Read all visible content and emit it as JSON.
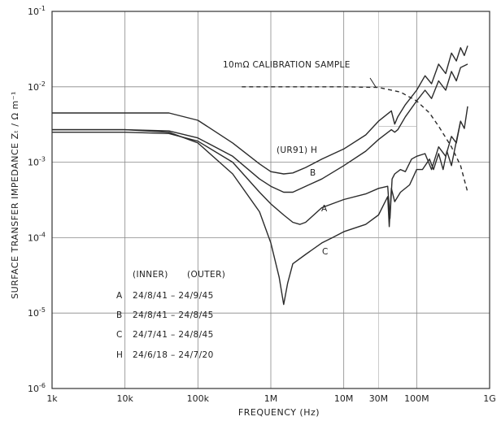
{
  "chart_data": {
    "type": "line",
    "xscale": "log",
    "yscale": "log",
    "xlim": [
      1000,
      1000000000
    ],
    "ylim": [
      1e-06,
      0.1
    ],
    "xlabel": "FREQUENCY (Hz)",
    "ylabel": "SURFACE TRANSFER IMPEDANCE Zₜ / Ω m⁻¹",
    "x_tick_labels": [
      "1k",
      "10k",
      "100k",
      "1M",
      "10M",
      "30M",
      "100M",
      "1G"
    ],
    "y_tick_labels": [
      {
        "base": "10",
        "exp": "-1"
      },
      {
        "base": "10",
        "exp": "-2"
      },
      {
        "base": "10",
        "exp": "-3"
      },
      {
        "base": "10",
        "exp": "-4"
      },
      {
        "base": "10",
        "exp": "-5"
      },
      {
        "base": "10",
        "exp": "-6"
      }
    ],
    "grid": true,
    "series": [
      {
        "name": "H",
        "points": [
          [
            1000,
            0.0045
          ],
          [
            10000,
            0.0045
          ],
          [
            40000,
            0.0045
          ],
          [
            100000,
            0.0036
          ],
          [
            300000,
            0.0018
          ],
          [
            700000,
            0.00095
          ],
          [
            1000000,
            0.00075
          ],
          [
            1500000,
            0.0007
          ],
          [
            2000000,
            0.00072
          ],
          [
            3000000,
            0.00085
          ],
          [
            5000000,
            0.0011
          ],
          [
            10000000,
            0.0015
          ],
          [
            20000000,
            0.0023
          ],
          [
            30000000,
            0.0035
          ],
          [
            45000000,
            0.0048
          ],
          [
            50000000,
            0.0032
          ],
          [
            55000000,
            0.004
          ],
          [
            70000000,
            0.0058
          ],
          [
            100000000,
            0.009
          ],
          [
            130000000,
            0.014
          ],
          [
            160000000,
            0.011
          ],
          [
            200000000,
            0.02
          ],
          [
            250000000,
            0.015
          ],
          [
            300000000,
            0.028
          ],
          [
            350000000,
            0.022
          ],
          [
            400000000,
            0.033
          ],
          [
            450000000,
            0.026
          ],
          [
            500000000,
            0.035
          ]
        ]
      },
      {
        "name": "B",
        "points": [
          [
            1000,
            0.0027
          ],
          [
            10000,
            0.0027
          ],
          [
            40000,
            0.0026
          ],
          [
            100000,
            0.0021
          ],
          [
            300000,
            0.0012
          ],
          [
            700000,
            0.0006
          ],
          [
            1000000,
            0.00048
          ],
          [
            1500000,
            0.0004
          ],
          [
            2000000,
            0.0004
          ],
          [
            3000000,
            0.00048
          ],
          [
            5000000,
            0.0006
          ],
          [
            10000000,
            0.0009
          ],
          [
            20000000,
            0.0014
          ],
          [
            30000000,
            0.002
          ],
          [
            45000000,
            0.0027
          ],
          [
            50000000,
            0.0025
          ],
          [
            55000000,
            0.0027
          ],
          [
            70000000,
            0.004
          ],
          [
            100000000,
            0.0065
          ],
          [
            130000000,
            0.009
          ],
          [
            160000000,
            0.007
          ],
          [
            200000000,
            0.012
          ],
          [
            250000000,
            0.009
          ],
          [
            300000000,
            0.016
          ],
          [
            350000000,
            0.012
          ],
          [
            400000000,
            0.018
          ],
          [
            500000000,
            0.02
          ]
        ]
      },
      {
        "name": "A",
        "points": [
          [
            1000,
            0.0025
          ],
          [
            10000,
            0.0025
          ],
          [
            40000,
            0.0024
          ],
          [
            100000,
            0.0019
          ],
          [
            300000,
            0.001
          ],
          [
            700000,
            0.0004
          ],
          [
            1000000,
            0.00028
          ],
          [
            1500000,
            0.0002
          ],
          [
            2000000,
            0.00016
          ],
          [
            2500000,
            0.00015
          ],
          [
            3000000,
            0.00016
          ],
          [
            5000000,
            0.00025
          ],
          [
            10000000,
            0.00032
          ],
          [
            20000000,
            0.00038
          ],
          [
            30000000,
            0.00045
          ],
          [
            40000000,
            0.00048
          ],
          [
            43000000,
            0.00018
          ],
          [
            46000000,
            0.0006
          ],
          [
            50000000,
            0.0007
          ],
          [
            60000000,
            0.0008
          ],
          [
            70000000,
            0.00075
          ],
          [
            85000000,
            0.0011
          ],
          [
            100000000,
            0.0012
          ],
          [
            130000000,
            0.0013
          ],
          [
            160000000,
            0.0008
          ],
          [
            200000000,
            0.0016
          ],
          [
            250000000,
            0.0012
          ],
          [
            300000000,
            0.0022
          ],
          [
            350000000,
            0.0018
          ],
          [
            400000000,
            0.0035
          ],
          [
            450000000,
            0.0028
          ],
          [
            500000000,
            0.0055
          ]
        ]
      },
      {
        "name": "C",
        "points": [
          [
            1000,
            0.0027
          ],
          [
            10000,
            0.0027
          ],
          [
            40000,
            0.0025
          ],
          [
            100000,
            0.0018
          ],
          [
            300000,
            0.0007
          ],
          [
            700000,
            0.00022
          ],
          [
            1000000,
            8.5e-05
          ],
          [
            1300000,
            3e-05
          ],
          [
            1500000,
            1.3e-05
          ],
          [
            1700000,
            2.5e-05
          ],
          [
            2000000,
            4.5e-05
          ],
          [
            3000000,
            6e-05
          ],
          [
            5000000,
            8.5e-05
          ],
          [
            7000000,
            0.0001
          ],
          [
            10000000,
            0.00012
          ],
          [
            20000000,
            0.00015
          ],
          [
            30000000,
            0.0002
          ],
          [
            40000000,
            0.00035
          ],
          [
            42000000,
            0.00014
          ],
          [
            45000000,
            0.00045
          ],
          [
            50000000,
            0.0003
          ],
          [
            60000000,
            0.0004
          ],
          [
            80000000,
            0.0005
          ],
          [
            100000000,
            0.0008
          ],
          [
            120000000,
            0.0008
          ],
          [
            150000000,
            0.0011
          ],
          [
            170000000,
            0.0008
          ],
          [
            200000000,
            0.0013
          ],
          [
            230000000,
            0.0008
          ],
          [
            260000000,
            0.0014
          ],
          [
            300000000,
            0.0009
          ],
          [
            350000000,
            0.0019
          ],
          [
            400000000,
            0.0035
          ]
        ]
      }
    ],
    "calibration": {
      "label": "10mΩ CALIBRATION SAMPLE",
      "points": [
        [
          400000,
          0.01
        ],
        [
          3000000,
          0.01
        ],
        [
          10000000,
          0.01
        ],
        [
          30000000,
          0.0098
        ],
        [
          60000000,
          0.0085
        ],
        [
          100000000,
          0.0065
        ],
        [
          150000000,
          0.0045
        ],
        [
          200000000,
          0.003
        ],
        [
          300000000,
          0.0016
        ],
        [
          400000000,
          0.0009
        ],
        [
          500000000,
          0.0004
        ]
      ]
    },
    "series_labels": [
      {
        "text": "(UR91) H",
        "series": "H"
      },
      {
        "text": "B",
        "series": "B"
      },
      {
        "text": "A",
        "series": "A"
      },
      {
        "text": "C",
        "series": "C"
      }
    ],
    "legend": {
      "placement": "bottom-left",
      "header_inner": "(INNER)",
      "header_outer": "(OUTER)",
      "rows": [
        {
          "key": "A",
          "text": "24/8/41 – 24/9/45"
        },
        {
          "key": "B",
          "text": "24/8/41 – 24/8/45"
        },
        {
          "key": "C",
          "text": "24/7/41 – 24/8/45"
        },
        {
          "key": "H",
          "text": "24/6/18 – 24/7/20"
        }
      ]
    }
  }
}
